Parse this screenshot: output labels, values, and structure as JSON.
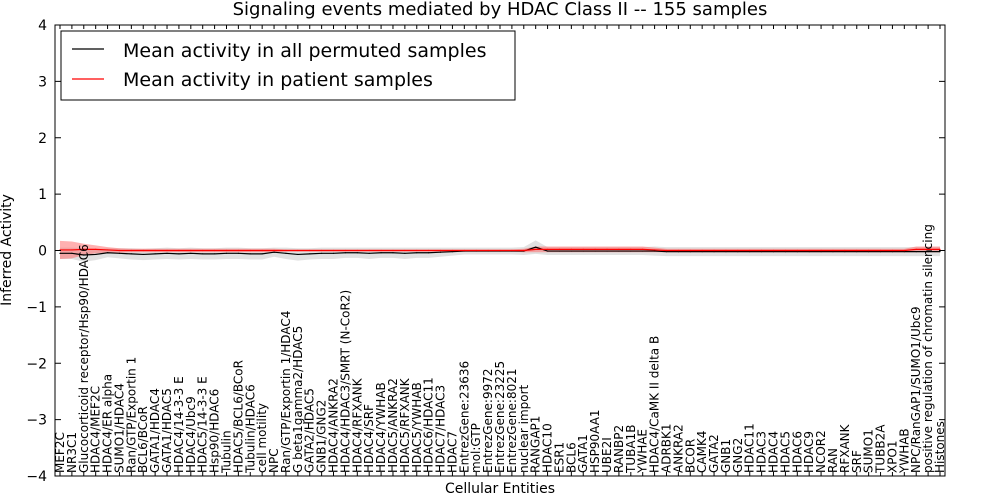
{
  "chart_data": {
    "type": "line",
    "title": "Signaling events mediated by HDAC Class II -- 155 samples",
    "xlabel": "Cellular Entities",
    "ylabel": "Inferred Activity",
    "ylim": [
      -4,
      4
    ],
    "yticks": [
      4,
      3,
      2,
      1,
      0,
      -1,
      -2,
      -3,
      -4
    ],
    "ytick_labels": [
      "4",
      "3",
      "2",
      "1",
      "0",
      "−1",
      "−2",
      "−3",
      "−4"
    ],
    "legend_position": "top-left",
    "colors": {
      "permuted": "#000000",
      "patient": "#ff0000",
      "permuted_band": "#c8c8c8",
      "patient_band": "#ff7070"
    },
    "categories": [
      "MEF2C",
      "NR3C1",
      "Glucocorticoid receptor/Hsp90/HDAC6",
      "HDAC4/MEF2C",
      "HDAC4/ER alpha",
      "SUMO1/HDAC4",
      "Ran/GTP/Exportin 1",
      "BCL6/BCoR",
      "GATA1/HDAC4",
      "GATA1/HDAC5",
      "HDAC4/14-3-3 E",
      "HDAC4/Ubc9",
      "HDAC5/14-3-3 E",
      "Hsp90/HDAC6",
      "Tubulin",
      "HDAC5/BCL6/BCoR",
      "Tubulin/HDAC6",
      "cell motility",
      "NPC",
      "Ran/GTP/Exportin 1/HDAC4",
      "G beta1gamma2/HDAC5",
      "GATA2/HDAC5",
      "GNB1/GNG2",
      "HDAC4/ANKRA2",
      "HDAC4/HDAC3/SMRT (N-CoR2)",
      "HDAC4/RFXANK",
      "HDAC4/SRF",
      "HDAC4/YWHAB",
      "HDAC5/ANKRA2",
      "HDAC5/RFXANK",
      "HDAC5/YWHAB",
      "HDAC6/HDAC11",
      "HDAC7/HDAC3",
      "HDAC7",
      "EntrezGene:23636",
      "mol:GTP",
      "EntrezGene:9972",
      "EntrezGene:23225",
      "EntrezGene:8021",
      "nuclear import",
      "RANGAP1",
      "HDAC10",
      "ESR1",
      "BCL6",
      "GATA1",
      "HSP90AA1",
      "UBE2I",
      "RANBP2",
      "TUBA1B",
      "YWHAE",
      "HDAC4/CaMK II delta B",
      "ADRBK1",
      "ANKRA2",
      "BCOR",
      "CAMK4",
      "GATA2",
      "GNB1",
      "GNG2",
      "HDAC11",
      "HDAC3",
      "HDAC4",
      "HDAC5",
      "HDAC6",
      "HDAC9",
      "NCOR2",
      "RAN",
      "RFXANK",
      "SRF",
      "SUMO1",
      "TUBB2A",
      "XPO1",
      "YWHAB",
      "NPC/RanGAP1/SUMO1/Ubc9",
      "positive regulation of chromatin silencing",
      "Histones"
    ],
    "series": [
      {
        "name": "Mean activity in all permuted samples",
        "color": "#000000",
        "values": [
          -0.05,
          -0.05,
          -0.08,
          -0.07,
          -0.04,
          -0.05,
          -0.06,
          -0.07,
          -0.06,
          -0.05,
          -0.06,
          -0.05,
          -0.06,
          -0.06,
          -0.05,
          -0.05,
          -0.06,
          -0.06,
          -0.03,
          -0.05,
          -0.07,
          -0.06,
          -0.05,
          -0.05,
          -0.04,
          -0.04,
          -0.05,
          -0.04,
          -0.04,
          -0.05,
          -0.04,
          -0.04,
          -0.03,
          -0.02,
          -0.01,
          -0.01,
          -0.01,
          -0.01,
          -0.01,
          -0.01,
          0.06,
          -0.01,
          -0.01,
          -0.01,
          -0.01,
          -0.01,
          -0.01,
          -0.01,
          -0.01,
          -0.01,
          -0.01,
          -0.02,
          -0.02,
          -0.02,
          -0.02,
          -0.02,
          -0.02,
          -0.02,
          -0.02,
          -0.02,
          -0.02,
          -0.02,
          -0.02,
          -0.02,
          -0.02,
          -0.02,
          -0.02,
          -0.02,
          -0.02,
          -0.02,
          -0.02,
          -0.02,
          -0.02,
          -0.02,
          -0.02
        ],
        "band": [
          0.1,
          0.1,
          0.12,
          0.1,
          0.08,
          0.09,
          0.1,
          0.1,
          0.1,
          0.1,
          0.1,
          0.1,
          0.1,
          0.1,
          0.1,
          0.1,
          0.1,
          0.1,
          0.08,
          0.1,
          0.11,
          0.1,
          0.1,
          0.1,
          0.09,
          0.09,
          0.1,
          0.09,
          0.09,
          0.1,
          0.09,
          0.09,
          0.08,
          0.07,
          0.06,
          0.06,
          0.06,
          0.06,
          0.06,
          0.07,
          0.12,
          0.07,
          0.07,
          0.07,
          0.07,
          0.07,
          0.07,
          0.07,
          0.07,
          0.07,
          0.08,
          0.08,
          0.08,
          0.08,
          0.08,
          0.08,
          0.08,
          0.08,
          0.08,
          0.08,
          0.08,
          0.08,
          0.08,
          0.08,
          0.08,
          0.08,
          0.08,
          0.08,
          0.08,
          0.08,
          0.08,
          0.08,
          0.08,
          0.08,
          0.08
        ]
      },
      {
        "name": "Mean activity in patient samples",
        "color": "#ff0000",
        "values": [
          0.01,
          0.01,
          0.02,
          0.02,
          0.01,
          0.0,
          0.0,
          0.0,
          0.0,
          0.0,
          0.0,
          0.0,
          0.0,
          0.0,
          0.0,
          0.0,
          0.0,
          0.0,
          0.0,
          0.0,
          0.0,
          0.0,
          0.0,
          0.0,
          0.0,
          0.0,
          0.0,
          0.0,
          0.0,
          0.0,
          0.0,
          0.0,
          0.0,
          0.0,
          0.0,
          0.0,
          0.0,
          0.0,
          0.0,
          0.0,
          0.02,
          0.02,
          0.02,
          0.02,
          0.02,
          0.02,
          0.02,
          0.02,
          0.02,
          0.02,
          0.01,
          0.0,
          0.0,
          0.0,
          0.0,
          0.0,
          0.0,
          0.0,
          0.0,
          0.0,
          0.0,
          0.0,
          0.0,
          0.0,
          0.0,
          0.0,
          0.0,
          0.0,
          0.0,
          0.0,
          0.0,
          0.0,
          0.02,
          0.02,
          0.02
        ],
        "band": [
          0.16,
          0.15,
          0.1,
          0.07,
          0.05,
          0.04,
          0.03,
          0.03,
          0.03,
          0.03,
          0.03,
          0.03,
          0.03,
          0.03,
          0.03,
          0.03,
          0.03,
          0.03,
          0.03,
          0.02,
          0.02,
          0.02,
          0.02,
          0.02,
          0.02,
          0.02,
          0.02,
          0.02,
          0.02,
          0.02,
          0.02,
          0.02,
          0.02,
          0.02,
          0.02,
          0.02,
          0.02,
          0.02,
          0.02,
          0.03,
          0.05,
          0.05,
          0.05,
          0.05,
          0.05,
          0.05,
          0.05,
          0.05,
          0.05,
          0.05,
          0.04,
          0.03,
          0.03,
          0.03,
          0.03,
          0.03,
          0.03,
          0.03,
          0.03,
          0.03,
          0.03,
          0.03,
          0.03,
          0.03,
          0.03,
          0.03,
          0.03,
          0.03,
          0.03,
          0.03,
          0.03,
          0.03,
          0.05,
          0.05,
          0.05
        ]
      }
    ]
  }
}
